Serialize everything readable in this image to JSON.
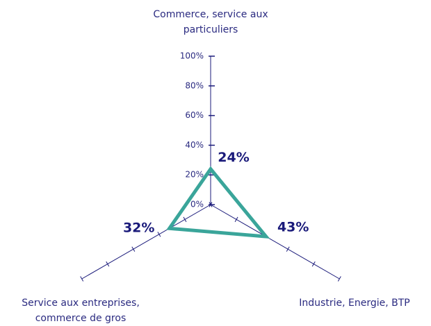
{
  "chart_data": {
    "type": "radar",
    "categories": [
      "Commerce, service aux particuliers",
      "Industrie, Energie, BTP",
      "Service aux entreprises, commerce de gros"
    ],
    "values": [
      24,
      43,
      32
    ],
    "value_labels": [
      "24%",
      "43%",
      "32%"
    ],
    "color": "#3aa59a",
    "axis_color": "#1a1a7a",
    "ylim": [
      0,
      100
    ],
    "yticks": [
      {
        "value": 0,
        "label": "0%"
      },
      {
        "value": 20,
        "label": "20%"
      },
      {
        "value": 40,
        "label": "40%"
      },
      {
        "value": 60,
        "label": "60%"
      },
      {
        "value": 80,
        "label": "80%"
      },
      {
        "value": 100,
        "label": "100%"
      }
    ]
  }
}
